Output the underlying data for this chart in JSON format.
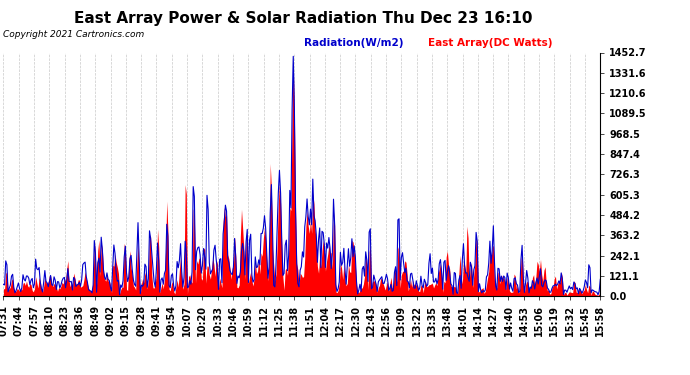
{
  "title": "East Array Power & Solar Radiation Thu Dec 23 16:10",
  "copyright": "Copyright 2021 Cartronics.com",
  "legend_radiation": "Radiation(W/m2)",
  "legend_east": "East Array(DC Watts)",
  "ymin": 0.0,
  "ymax": 1452.7,
  "yticks": [
    0.0,
    121.1,
    242.1,
    363.2,
    484.2,
    605.3,
    726.3,
    847.4,
    968.5,
    1089.5,
    1210.6,
    1331.6,
    1452.7
  ],
  "background_color": "#ffffff",
  "plot_bg_color": "#ffffff",
  "grid_color": "#bbbbbb",
  "radiation_color": "#0000cc",
  "east_array_color": "#ff0000",
  "title_fontsize": 11,
  "tick_fontsize": 7,
  "x_labels": [
    "07:31",
    "07:44",
    "07:57",
    "08:10",
    "08:23",
    "08:36",
    "08:49",
    "09:02",
    "09:15",
    "09:28",
    "09:41",
    "09:54",
    "10:07",
    "10:20",
    "10:33",
    "10:46",
    "10:59",
    "11:12",
    "11:25",
    "11:38",
    "11:51",
    "12:04",
    "12:17",
    "12:30",
    "12:43",
    "12:56",
    "13:09",
    "13:22",
    "13:35",
    "13:48",
    "14:01",
    "14:14",
    "14:27",
    "14:40",
    "14:53",
    "15:06",
    "15:19",
    "15:32",
    "15:45",
    "15:58"
  ],
  "n_points": 520
}
